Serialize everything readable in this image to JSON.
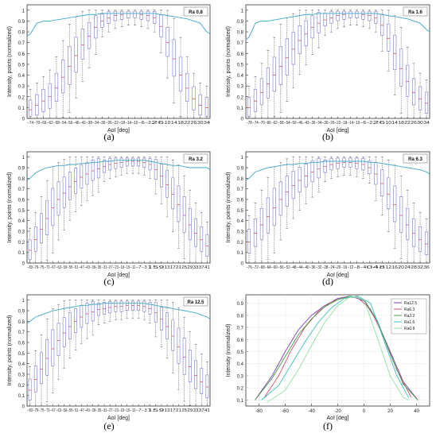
{
  "chart_data": [
    {
      "panel": "(a)",
      "type": "box",
      "legend": "Ra 0.8",
      "xlabel": "AoI [deg]",
      "ylabel": "Intensity, points (normalized)",
      "ylim": [
        0,
        1.05
      ],
      "yticks": [
        0,
        0.1,
        0.2,
        0.3,
        0.4,
        0.5,
        0.6,
        0.7,
        0.8,
        0.9,
        1
      ],
      "categories": [
        "−74",
        "−70",
        "−66",
        "−62",
        "−58",
        "−54",
        "−50",
        "−46",
        "−42",
        "−38",
        "−34",
        "−30",
        "−26",
        "−22",
        "−18",
        "−14",
        "−10",
        "−6",
        "−2",
        "2",
        "6",
        "10",
        "14",
        "18",
        "22",
        "26",
        "30",
        "34"
      ],
      "medians": [
        0.08,
        0.12,
        0.16,
        0.2,
        0.28,
        0.38,
        0.48,
        0.58,
        0.68,
        0.76,
        0.84,
        0.9,
        0.93,
        0.95,
        0.96,
        0.97,
        0.97,
        0.96,
        0.95,
        0.93,
        0.85,
        0.7,
        0.55,
        0.4,
        0.28,
        0.18,
        0.12,
        0.1
      ],
      "envelope": [
        0.78,
        0.88,
        0.9,
        0.9,
        0.91,
        0.92,
        0.93,
        0.94,
        0.95,
        0.96,
        0.96,
        0.97,
        0.97,
        0.97,
        0.97,
        0.97,
        0.97,
        0.97,
        0.97,
        0.97,
        0.96,
        0.95,
        0.94,
        0.93,
        0.92,
        0.9,
        0.88,
        0.8
      ]
    },
    {
      "panel": "(b)",
      "type": "box",
      "legend": "Ra 1.6",
      "xlabel": "AoI [deg]",
      "ylabel": "Intensity, points (normalized)",
      "ylim": [
        0,
        1.05
      ],
      "yticks": [
        0,
        0.1,
        0.2,
        0.3,
        0.4,
        0.5,
        0.6,
        0.7,
        0.8,
        0.9,
        1
      ],
      "categories": [
        "−78",
        "−74",
        "−70",
        "−66",
        "−62",
        "−58",
        "−54",
        "−50",
        "−46",
        "−43",
        "−39",
        "−34",
        "−30",
        "−26",
        "−22",
        "−18",
        "−14",
        "−10",
        "−6",
        "−2",
        "2",
        "6",
        "10",
        "14",
        "18",
        "22",
        "26",
        "30",
        "34"
      ],
      "medians": [
        0.1,
        0.16,
        0.24,
        0.32,
        0.4,
        0.48,
        0.56,
        0.64,
        0.72,
        0.78,
        0.84,
        0.88,
        0.91,
        0.93,
        0.95,
        0.96,
        0.97,
        0.97,
        0.96,
        0.95,
        0.93,
        0.86,
        0.74,
        0.6,
        0.46,
        0.34,
        0.24,
        0.18,
        0.14
      ],
      "envelope": [
        0.75,
        0.88,
        0.9,
        0.9,
        0.91,
        0.92,
        0.93,
        0.94,
        0.95,
        0.96,
        0.96,
        0.97,
        0.97,
        0.97,
        0.97,
        0.97,
        0.97,
        0.97,
        0.97,
        0.97,
        0.97,
        0.96,
        0.95,
        0.94,
        0.93,
        0.92,
        0.9,
        0.88,
        0.82
      ]
    },
    {
      "panel": "(c)",
      "type": "box",
      "legend": "Ra 3.2",
      "xlabel": "AoI [deg]",
      "ylabel": "Intensity, points (normalized)",
      "ylim": [
        0,
        1.05
      ],
      "yticks": [
        0,
        0.1,
        0.2,
        0.3,
        0.4,
        0.5,
        0.6,
        0.7,
        0.8,
        0.9,
        1
      ],
      "categories": [
        "−83",
        "−79",
        "−75",
        "−71",
        "−67",
        "−63",
        "−59",
        "−55",
        "−51",
        "−47",
        "−43",
        "−39",
        "−35",
        "−31",
        "−27",
        "−23",
        "−19",
        "−15",
        "−11",
        "−7",
        "−3",
        "1",
        "5",
        "9",
        "13",
        "17",
        "21",
        "25",
        "29",
        "33",
        "37",
        "41"
      ],
      "medians": [
        0.12,
        0.22,
        0.32,
        0.42,
        0.52,
        0.6,
        0.66,
        0.72,
        0.77,
        0.81,
        0.84,
        0.87,
        0.89,
        0.91,
        0.93,
        0.94,
        0.95,
        0.96,
        0.96,
        0.96,
        0.95,
        0.93,
        0.88,
        0.82,
        0.74,
        0.65,
        0.55,
        0.45,
        0.36,
        0.28,
        0.22,
        0.16
      ],
      "envelope": [
        0.8,
        0.85,
        0.88,
        0.9,
        0.91,
        0.92,
        0.92,
        0.93,
        0.93,
        0.94,
        0.94,
        0.95,
        0.95,
        0.96,
        0.96,
        0.97,
        0.97,
        0.97,
        0.97,
        0.97,
        0.97,
        0.96,
        0.95,
        0.94,
        0.93,
        0.92,
        0.92,
        0.91,
        0.9,
        0.9,
        0.9,
        0.9
      ]
    },
    {
      "panel": "(d)",
      "type": "box",
      "legend": "Ra 6.3",
      "xlabel": "AoI [deg]",
      "ylabel": "Intensity, points (normalized)",
      "ylim": [
        0,
        1.05
      ],
      "yticks": [
        0,
        0.1,
        0.2,
        0.3,
        0.4,
        0.5,
        0.6,
        0.7,
        0.8,
        0.9,
        1
      ],
      "categories": [
        "−76",
        "−72",
        "−68",
        "−64",
        "−60",
        "−56",
        "−52",
        "−48",
        "−44",
        "−40",
        "−36",
        "−32",
        "−28",
        "−24",
        "−20",
        "−16",
        "−12",
        "−8",
        "−4",
        "0",
        "4",
        "8",
        "12",
        "16",
        "20",
        "24",
        "28",
        "32",
        "36"
      ],
      "medians": [
        0.2,
        0.28,
        0.36,
        0.44,
        0.52,
        0.6,
        0.67,
        0.73,
        0.78,
        0.82,
        0.86,
        0.89,
        0.91,
        0.93,
        0.94,
        0.95,
        0.95,
        0.94,
        0.93,
        0.9,
        0.84,
        0.75,
        0.65,
        0.55,
        0.45,
        0.36,
        0.28,
        0.22,
        0.18
      ],
      "envelope": [
        0.8,
        0.86,
        0.88,
        0.9,
        0.91,
        0.92,
        0.93,
        0.93,
        0.94,
        0.94,
        0.95,
        0.95,
        0.96,
        0.96,
        0.96,
        0.96,
        0.96,
        0.96,
        0.96,
        0.95,
        0.95,
        0.94,
        0.93,
        0.92,
        0.91,
        0.9,
        0.89,
        0.88,
        0.86
      ]
    },
    {
      "panel": "(e)",
      "type": "box",
      "legend": "Ra 12.5",
      "xlabel": "AoI [deg]",
      "ylabel": "Intensity, points (normalized)",
      "ylim": [
        0,
        1.05
      ],
      "yticks": [
        0,
        0.1,
        0.2,
        0.3,
        0.4,
        0.5,
        0.6,
        0.7,
        0.8,
        0.9,
        1
      ],
      "categories": [
        "−83",
        "−79",
        "−75",
        "−71",
        "−67",
        "−63",
        "−59",
        "−55",
        "−51",
        "−47",
        "−43",
        "−39",
        "−35",
        "−31",
        "−27",
        "−23",
        "−19",
        "−15",
        "−11",
        "−7",
        "−3",
        "1",
        "5",
        "9",
        "13",
        "17",
        "21",
        "25",
        "29",
        "33",
        "37",
        "41"
      ],
      "medians": [
        0.15,
        0.25,
        0.35,
        0.45,
        0.54,
        0.62,
        0.69,
        0.75,
        0.8,
        0.84,
        0.87,
        0.89,
        0.91,
        0.92,
        0.93,
        0.94,
        0.94,
        0.95,
        0.95,
        0.95,
        0.94,
        0.92,
        0.88,
        0.82,
        0.75,
        0.66,
        0.56,
        0.46,
        0.37,
        0.29,
        0.23,
        0.18
      ],
      "envelope": [
        0.8,
        0.84,
        0.86,
        0.88,
        0.9,
        0.91,
        0.92,
        0.93,
        0.94,
        0.95,
        0.95,
        0.96,
        0.96,
        0.97,
        0.97,
        0.97,
        0.97,
        0.97,
        0.97,
        0.97,
        0.97,
        0.96,
        0.95,
        0.94,
        0.93,
        0.92,
        0.91,
        0.9,
        0.89,
        0.88,
        0.86,
        0.84
      ]
    },
    {
      "panel": "(f)",
      "type": "line",
      "xlabel": "AoI [deg]",
      "ylabel": "Intensity (normalized)",
      "xlim": [
        -90,
        50
      ],
      "ylim": [
        0.05,
        0.97
      ],
      "xticks": [
        -80,
        -60,
        -40,
        -20,
        0,
        20,
        40
      ],
      "yticks": [
        0.1,
        0.2,
        0.3,
        0.4,
        0.5,
        0.6,
        0.7,
        0.8,
        0.9
      ],
      "legend_position": "top-right",
      "series": [
        {
          "name": "Ra12.5",
          "color": "#7a3fb0",
          "x": [
            -83,
            -70,
            -60,
            -50,
            -40,
            -30,
            -20,
            -10,
            0,
            10,
            20,
            30,
            41
          ],
          "y": [
            0.1,
            0.3,
            0.5,
            0.68,
            0.8,
            0.88,
            0.94,
            0.96,
            0.92,
            0.75,
            0.5,
            0.25,
            0.1
          ]
        },
        {
          "name": "Ra6.3",
          "color": "#d05070",
          "x": [
            -76,
            -65,
            -55,
            -45,
            -35,
            -25,
            -15,
            -5,
            5,
            15,
            25,
            36
          ],
          "y": [
            0.12,
            0.3,
            0.52,
            0.7,
            0.83,
            0.91,
            0.95,
            0.95,
            0.85,
            0.62,
            0.35,
            0.12
          ]
        },
        {
          "name": "Ra3.2",
          "color": "#4a9a4a",
          "x": [
            -83,
            -70,
            -60,
            -50,
            -40,
            -30,
            -20,
            -10,
            0,
            10,
            20,
            30,
            41
          ],
          "y": [
            0.1,
            0.28,
            0.46,
            0.64,
            0.77,
            0.87,
            0.93,
            0.96,
            0.93,
            0.76,
            0.48,
            0.23,
            0.1
          ]
        },
        {
          "name": "Ra1.6",
          "color": "#3cc0c0",
          "x": [
            -78,
            -65,
            -55,
            -45,
            -35,
            -25,
            -15,
            -5,
            5,
            15,
            25,
            34
          ],
          "y": [
            0.1,
            0.22,
            0.4,
            0.58,
            0.74,
            0.86,
            0.94,
            0.96,
            0.9,
            0.6,
            0.3,
            0.12
          ]
        },
        {
          "name": "Ra0.8",
          "color": "#8fe0a0",
          "x": [
            -74,
            -60,
            -50,
            -40,
            -30,
            -20,
            -10,
            0,
            10,
            20,
            30,
            34
          ],
          "y": [
            0.08,
            0.18,
            0.35,
            0.55,
            0.74,
            0.88,
            0.96,
            0.93,
            0.62,
            0.3,
            0.12,
            0.1
          ]
        }
      ]
    }
  ]
}
